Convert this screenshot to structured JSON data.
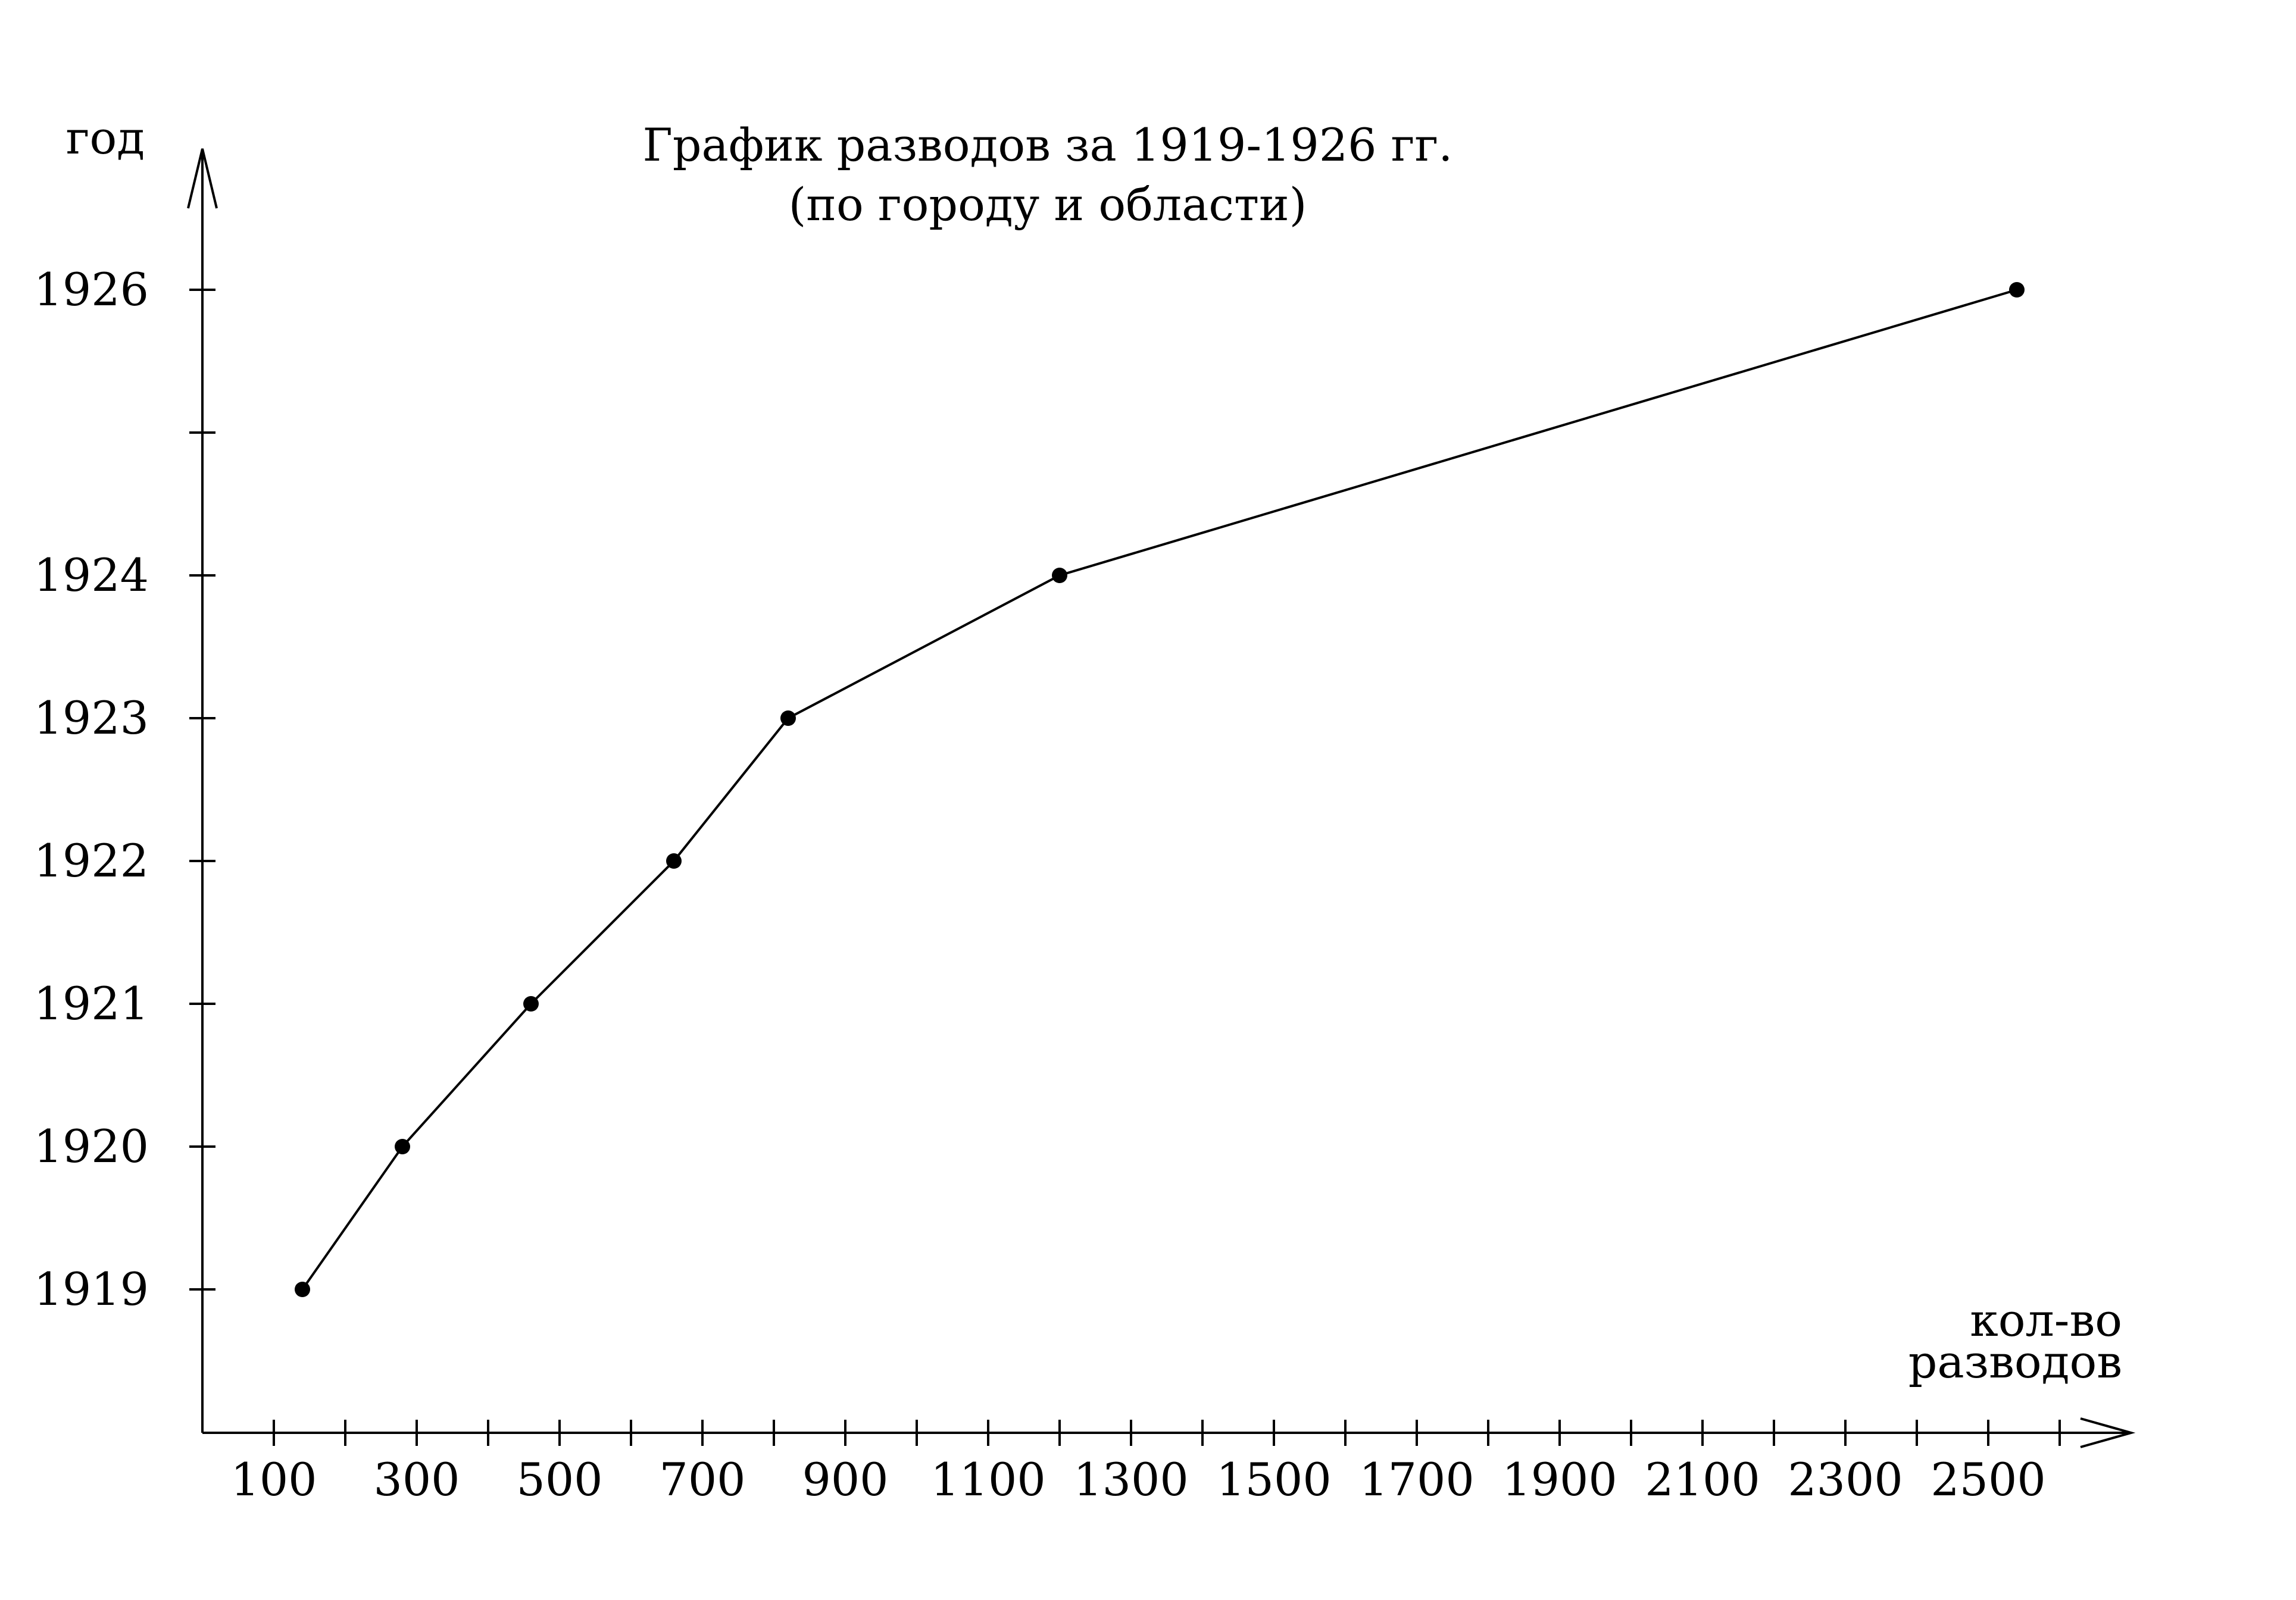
{
  "chart_data": {
    "type": "line",
    "title": "График разводов за 1919-1926 гг.",
    "subtitle": "(по городу и области)",
    "ylabel": "год",
    "xlabel_line1": "кол-во",
    "xlabel_line2": "разводов",
    "x_range": [
      0,
      2600
    ],
    "y_range": [
      1918,
      1927
    ],
    "x_tick_labels": [
      "100",
      "300",
      "500",
      "700",
      "900",
      "1100",
      "1300",
      "1500",
      "1700",
      "1900",
      "2100",
      "2300",
      "2500"
    ],
    "y_tick_labels": [
      "1919",
      "1920",
      "1921",
      "1922",
      "1923",
      "1924",
      "1926"
    ],
    "grid": false,
    "series": [
      {
        "points": [
          {
            "x": 140,
            "y": 1919
          },
          {
            "x": 280,
            "y": 1920
          },
          {
            "x": 460,
            "y": 1921
          },
          {
            "x": 660,
            "y": 1922
          },
          {
            "x": 820,
            "y": 1923
          },
          {
            "x": 1200,
            "y": 1924
          },
          {
            "x": 2540,
            "y": 1926
          }
        ]
      }
    ]
  }
}
